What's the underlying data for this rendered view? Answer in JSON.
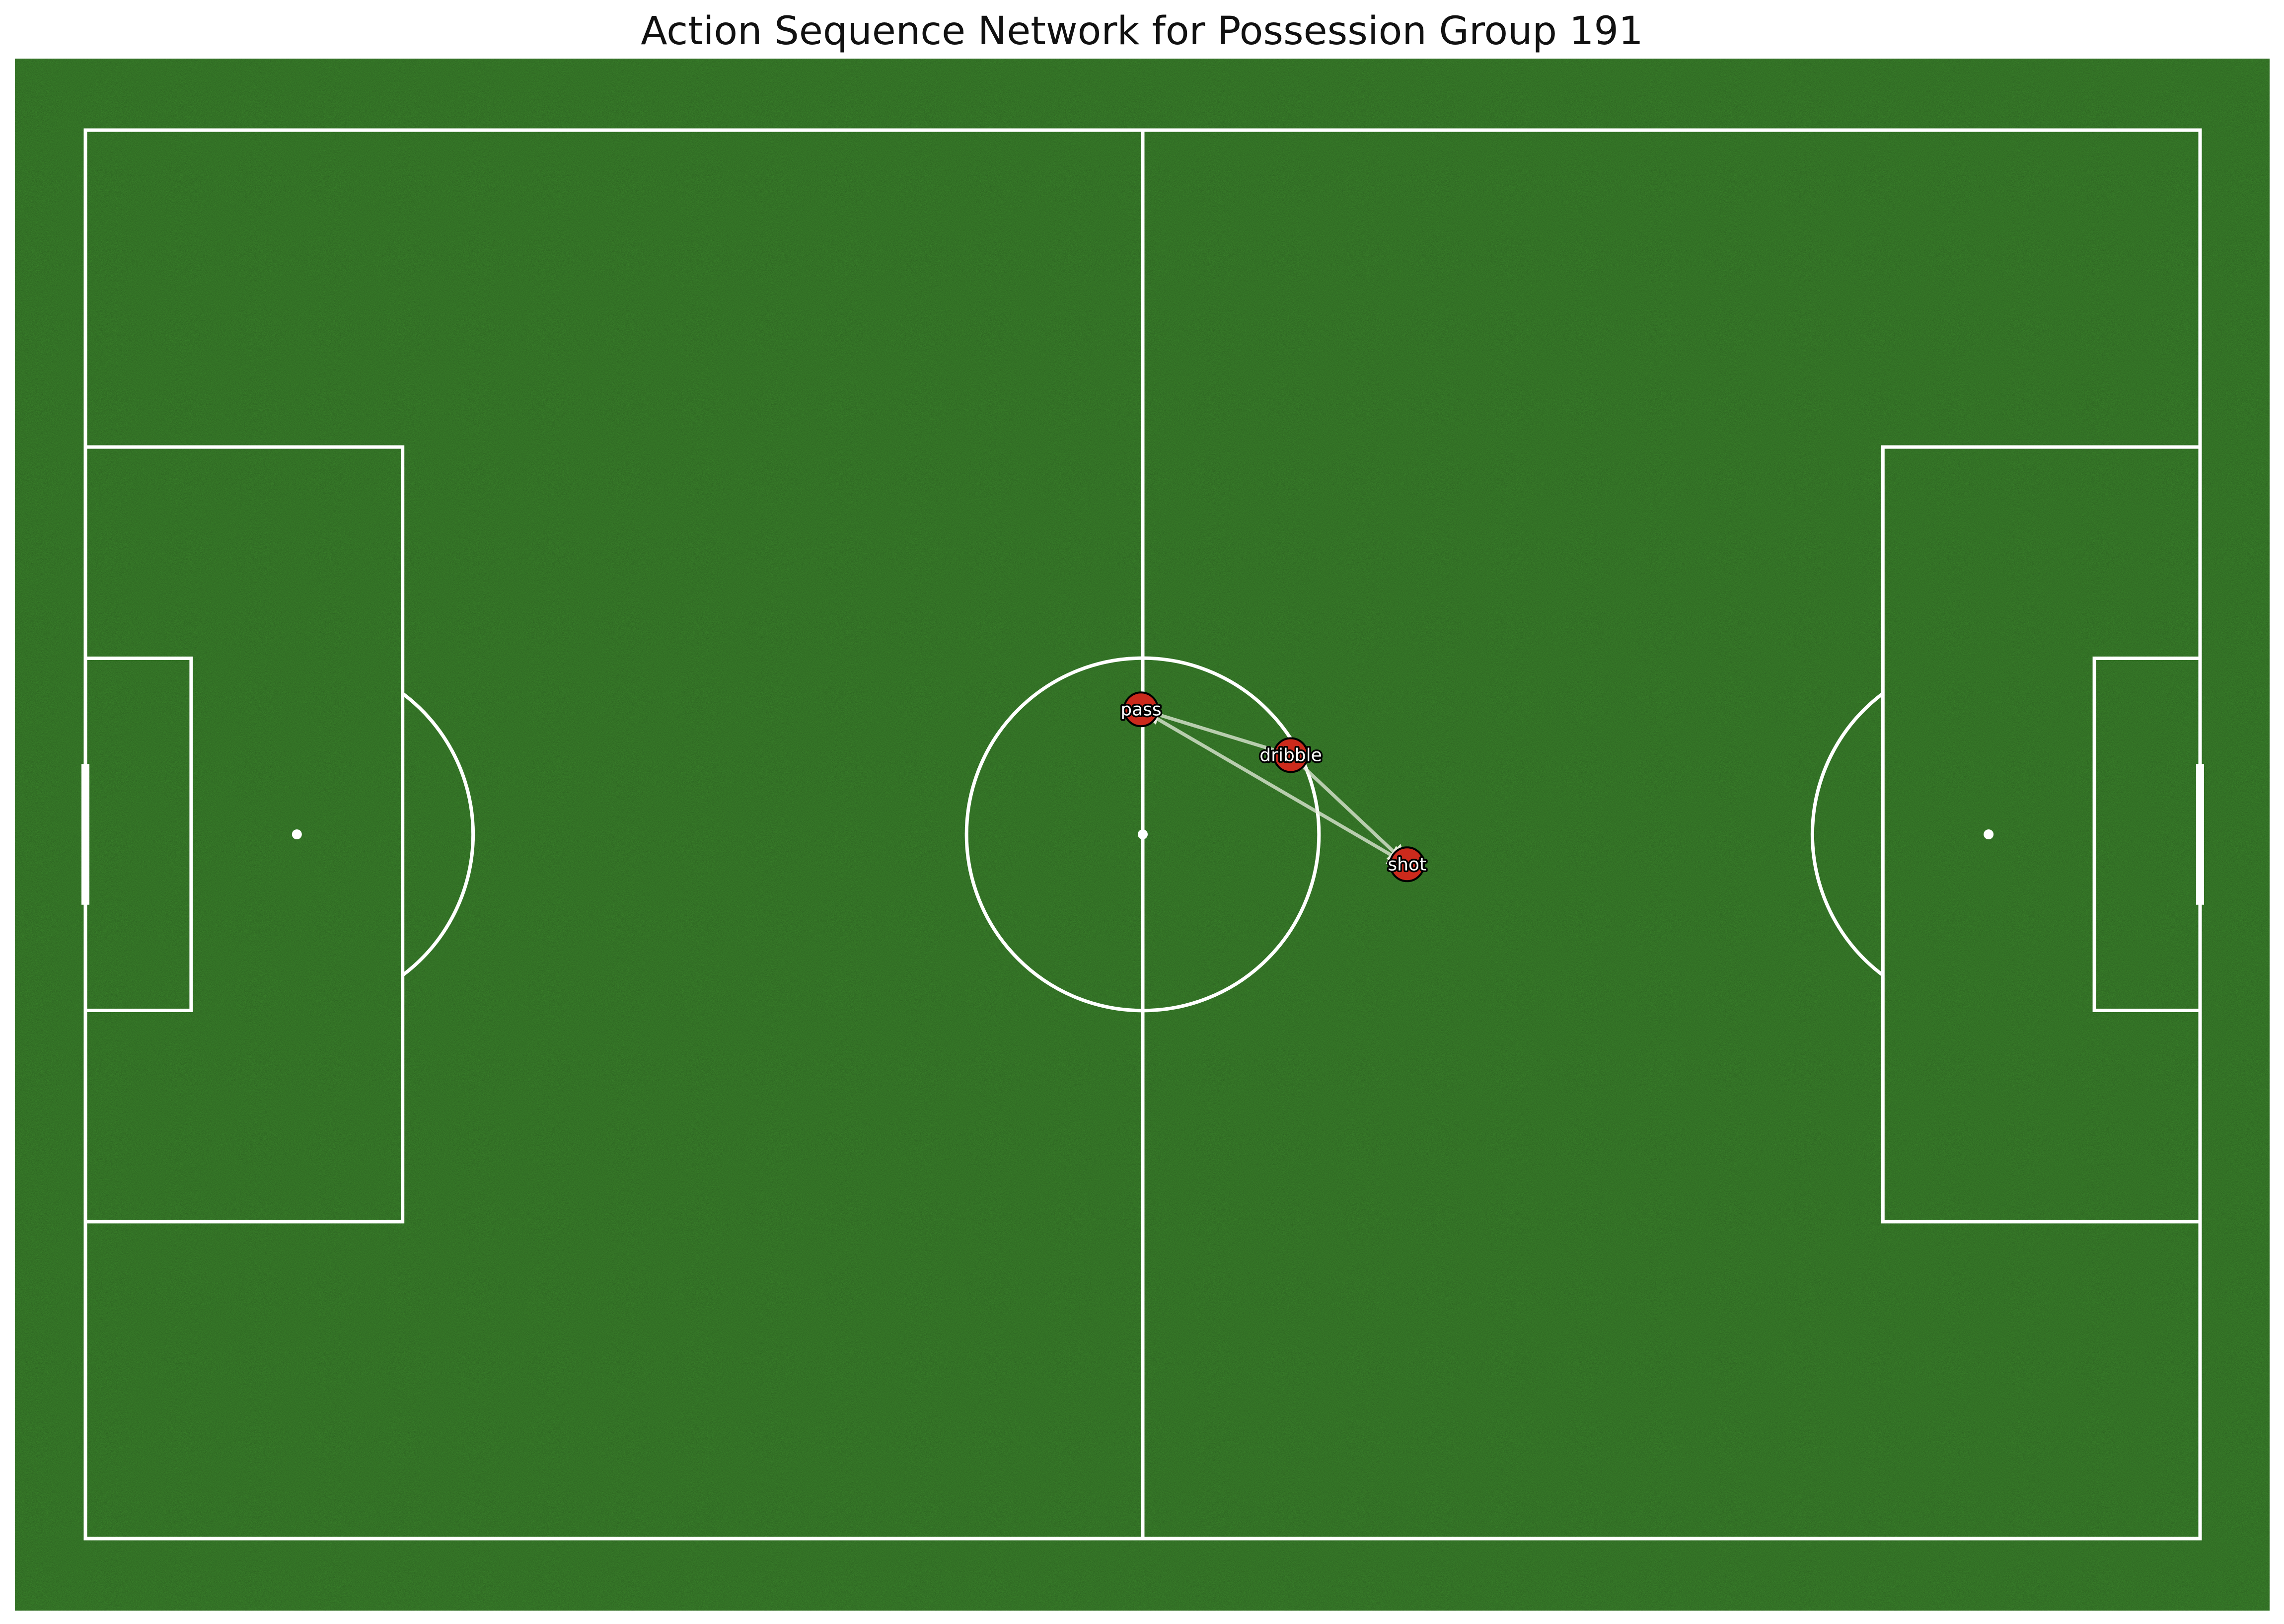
{
  "chart_data": {
    "type": "network",
    "title": "Action Sequence Network for Possession Group 191",
    "pitch": {
      "length": 120,
      "width": 80,
      "grass_color": "#3e8a2e",
      "line_color": "#ffffff"
    },
    "nodes": [
      {
        "id": "pass",
        "label": "pass",
        "x": 59.9,
        "y": 32.9
      },
      {
        "id": "dribble",
        "label": "dribble",
        "x": 68.4,
        "y": 35.5
      },
      {
        "id": "shot",
        "label": "shot",
        "x": 75.0,
        "y": 41.7
      }
    ],
    "edges": [
      {
        "from": "dribble",
        "to": "pass"
      },
      {
        "from": "pass",
        "to": "shot"
      },
      {
        "from": "dribble",
        "to": "shot"
      }
    ],
    "node_color": "#cc2a1c",
    "edge_color": "#e6ecdc"
  }
}
